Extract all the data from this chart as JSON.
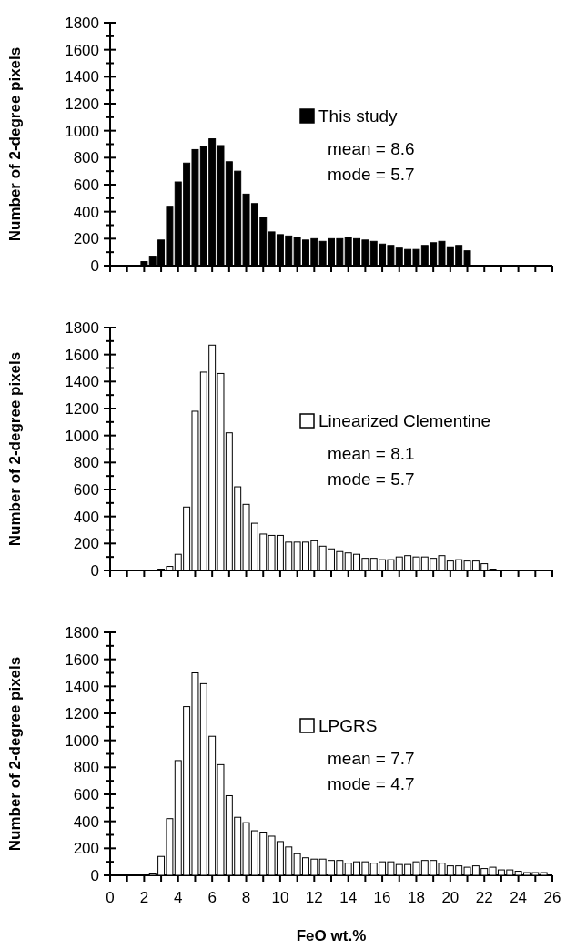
{
  "chart_data": [
    {
      "type": "histogram",
      "ylabel": "Number of 2-degree pixels",
      "xlim": [
        0,
        26
      ],
      "xticks": [
        0,
        {
          "value": 1,
          "label": null
        },
        {
          "value": 2,
          "label": null
        },
        {
          "value": 3,
          "label": null
        },
        {
          "value": 4,
          "label": null
        },
        {
          "value": 5,
          "label": null
        },
        {
          "value": 6,
          "label": null
        },
        {
          "value": 7,
          "label": null
        },
        {
          "value": 8,
          "label": null
        },
        {
          "value": 9,
          "label": null
        },
        {
          "value": 10,
          "label": null
        },
        {
          "value": 11,
          "label": null
        },
        {
          "value": 12,
          "label": null
        },
        {
          "value": 13,
          "label": null
        },
        {
          "value": 14,
          "label": null
        },
        {
          "value": 15,
          "label": null
        },
        {
          "value": 16,
          "label": null
        },
        {
          "value": 17,
          "label": null
        },
        {
          "value": 18,
          "label": null
        },
        {
          "value": 19,
          "label": null
        },
        {
          "value": 20,
          "label": null
        },
        {
          "value": 21,
          "label": null
        },
        {
          "value": 22,
          "label": null
        },
        {
          "value": 23,
          "label": null
        },
        {
          "value": 24,
          "label": null
        },
        {
          "value": 25,
          "label": null
        },
        {
          "value": 26,
          "label": null
        }
      ],
      "ylim": [
        0,
        1800
      ],
      "yticks": [
        0,
        {
          "value": 100,
          "label": null
        },
        200,
        {
          "value": 300,
          "label": null
        },
        400,
        {
          "value": 500,
          "label": null
        },
        600,
        {
          "value": 700,
          "label": null
        },
        800,
        {
          "value": 900,
          "label": null
        },
        1000,
        {
          "value": 1100,
          "label": null
        },
        1200,
        {
          "value": 1300,
          "label": null
        },
        1400,
        {
          "value": 1500,
          "label": null
        },
        1600,
        {
          "value": 1700,
          "label": null
        },
        1800
      ],
      "tick_labels": "y",
      "legend": "right",
      "bins": [
        1.75,
        2.25,
        2.75,
        3.25,
        3.75,
        4.25,
        4.75,
        5.25,
        5.75,
        6.25,
        6.75,
        7.25,
        7.75,
        8.25,
        8.75,
        9.25,
        9.75,
        10.25,
        10.75,
        11.25,
        11.75,
        12.25,
        12.75,
        13.25,
        13.75,
        14.25,
        14.75,
        15.25,
        15.75,
        16.25,
        16.75,
        17.25,
        17.75,
        18.25,
        18.75,
        19.25,
        19.75,
        20.25,
        20.75,
        21.25
      ],
      "series": [
        {
          "name": "This study",
          "color": "#000000",
          "values": [
            30,
            70,
            190,
            440,
            620,
            760,
            860,
            880,
            940,
            890,
            770,
            700,
            530,
            460,
            360,
            250,
            230,
            220,
            210,
            190,
            200,
            180,
            200,
            200,
            210,
            200,
            190,
            180,
            160,
            150,
            130,
            120,
            120,
            150,
            170,
            180,
            140,
            150,
            110
          ]
        }
      ],
      "annotations": [
        "mean = 8.6",
        "mode = 5.7"
      ]
    },
    {
      "type": "histogram",
      "ylabel": "Number of 2-degree pixels",
      "xlim": [
        0,
        26
      ],
      "xticks": [
        0,
        {
          "value": 1,
          "label": null
        },
        {
          "value": 2,
          "label": null
        },
        {
          "value": 3,
          "label": null
        },
        {
          "value": 4,
          "label": null
        },
        {
          "value": 5,
          "label": null
        },
        {
          "value": 6,
          "label": null
        },
        {
          "value": 7,
          "label": null
        },
        {
          "value": 8,
          "label": null
        },
        {
          "value": 9,
          "label": null
        },
        {
          "value": 10,
          "label": null
        },
        {
          "value": 11,
          "label": null
        },
        {
          "value": 12,
          "label": null
        },
        {
          "value": 13,
          "label": null
        },
        {
          "value": 14,
          "label": null
        },
        {
          "value": 15,
          "label": null
        },
        {
          "value": 16,
          "label": null
        },
        {
          "value": 17,
          "label": null
        },
        {
          "value": 18,
          "label": null
        },
        {
          "value": 19,
          "label": null
        },
        {
          "value": 20,
          "label": null
        },
        {
          "value": 21,
          "label": null
        },
        {
          "value": 22,
          "label": null
        },
        {
          "value": 23,
          "label": null
        },
        {
          "value": 24,
          "label": null
        },
        {
          "value": 25,
          "label": null
        },
        {
          "value": 26,
          "label": null
        }
      ],
      "ylim": [
        0,
        1800
      ],
      "yticks": [
        0,
        {
          "value": 100,
          "label": null
        },
        200,
        {
          "value": 300,
          "label": null
        },
        400,
        {
          "value": 500,
          "label": null
        },
        600,
        {
          "value": 700,
          "label": null
        },
        800,
        {
          "value": 900,
          "label": null
        },
        1000,
        {
          "value": 1100,
          "label": null
        },
        1200,
        {
          "value": 1300,
          "label": null
        },
        1400,
        {
          "value": 1500,
          "label": null
        },
        1600,
        {
          "value": 1700,
          "label": null
        },
        1800
      ],
      "tick_labels": "y",
      "legend": "right",
      "bins": [
        2.75,
        3.25,
        3.75,
        4.25,
        4.75,
        5.25,
        5.75,
        6.25,
        6.75,
        7.25,
        7.75,
        8.25,
        8.75,
        9.25,
        9.75,
        10.25,
        10.75,
        11.25,
        11.75,
        12.25,
        12.75,
        13.25,
        13.75,
        14.25,
        14.75,
        15.25,
        15.75,
        16.25,
        16.75,
        17.25,
        17.75,
        18.25,
        18.75,
        19.25,
        19.75,
        20.25,
        20.75,
        21.25,
        21.75,
        22.25,
        22.75
      ],
      "series": [
        {
          "name": "Linearized Clementine",
          "color": "#ffffff",
          "values": [
            10,
            30,
            120,
            470,
            1180,
            1470,
            1670,
            1460,
            1020,
            620,
            490,
            350,
            270,
            260,
            260,
            210,
            210,
            210,
            220,
            180,
            160,
            140,
            130,
            120,
            90,
            90,
            80,
            80,
            100,
            110,
            100,
            100,
            90,
            110,
            70,
            80,
            70,
            70,
            50,
            10
          ]
        }
      ],
      "annotations": [
        "mean = 8.1",
        "mode = 5.7"
      ]
    },
    {
      "type": "histogram",
      "ylabel": "Number of 2-degree pixels",
      "xlabel": "FeO wt.%",
      "xlim": [
        0,
        26
      ],
      "xticks": [
        0,
        {
          "value": 1,
          "label": null
        },
        2,
        {
          "value": 3,
          "label": null
        },
        4,
        {
          "value": 5,
          "label": null
        },
        6,
        {
          "value": 7,
          "label": null
        },
        8,
        {
          "value": 9,
          "label": null
        },
        10,
        {
          "value": 11,
          "label": null
        },
        12,
        {
          "value": 13,
          "label": null
        },
        14,
        {
          "value": 15,
          "label": null
        },
        16,
        {
          "value": 17,
          "label": null
        },
        18,
        {
          "value": 19,
          "label": null
        },
        20,
        {
          "value": 21,
          "label": null
        },
        22,
        {
          "value": 23,
          "label": null
        },
        24,
        {
          "value": 25,
          "label": null
        },
        26
      ],
      "ylim": [
        0,
        1800
      ],
      "yticks": [
        0,
        {
          "value": 100,
          "label": null
        },
        200,
        {
          "value": 300,
          "label": null
        },
        400,
        {
          "value": 500,
          "label": null
        },
        600,
        {
          "value": 700,
          "label": null
        },
        800,
        {
          "value": 900,
          "label": null
        },
        1000,
        {
          "value": 1100,
          "label": null
        },
        1200,
        {
          "value": 1300,
          "label": null
        },
        1400,
        {
          "value": 1500,
          "label": null
        },
        1600,
        {
          "value": 1700,
          "label": null
        },
        1800
      ],
      "legend": "right",
      "bins": [
        2.25,
        2.75,
        3.25,
        3.75,
        4.25,
        4.75,
        5.25,
        5.75,
        6.25,
        6.75,
        7.25,
        7.75,
        8.25,
        8.75,
        9.25,
        9.75,
        10.25,
        10.75,
        11.25,
        11.75,
        12.25,
        12.75,
        13.25,
        13.75,
        14.25,
        14.75,
        15.25,
        15.75,
        16.25,
        16.75,
        17.25,
        17.75,
        18.25,
        18.75,
        19.25,
        19.75,
        20.25,
        20.75,
        21.25,
        21.75,
        22.25,
        22.75,
        23.25,
        23.75,
        24.25,
        24.75,
        25.25,
        25.75
      ],
      "series": [
        {
          "name": "LPGRS",
          "color": "#ffffff",
          "values": [
            10,
            140,
            420,
            850,
            1250,
            1500,
            1420,
            1030,
            820,
            590,
            430,
            390,
            330,
            320,
            290,
            250,
            210,
            160,
            130,
            120,
            120,
            110,
            110,
            90,
            100,
            100,
            90,
            100,
            100,
            80,
            80,
            100,
            110,
            110,
            90,
            70,
            70,
            60,
            70,
            50,
            60,
            40,
            40,
            30,
            20,
            20,
            20
          ]
        }
      ],
      "annotations": [
        "mean = 7.7",
        "mode = 4.7"
      ]
    }
  ]
}
